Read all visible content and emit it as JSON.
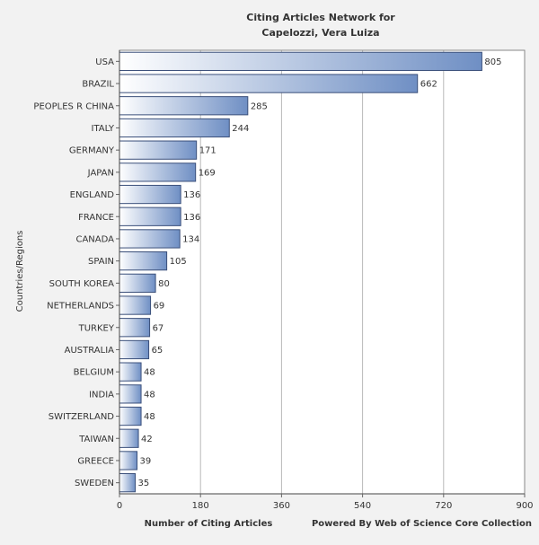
{
  "chart_data": {
    "type": "bar",
    "orientation": "horizontal",
    "title_lines": [
      "Citing Articles Network for",
      "Capelozzi, Vera Luiza"
    ],
    "ylabel": "Countries/Regions",
    "xlabel": "Number of Citing Articles",
    "footer": "Powered By Web of Science Core Collection",
    "xlim": [
      0,
      900
    ],
    "xticks": [
      0,
      180,
      360,
      540,
      720,
      900
    ],
    "categories": [
      "USA",
      "BRAZIL",
      "PEOPLES R CHINA",
      "ITALY",
      "GERMANY",
      "JAPAN",
      "ENGLAND",
      "FRANCE",
      "CANADA",
      "SPAIN",
      "SOUTH KOREA",
      "NETHERLANDS",
      "TURKEY",
      "AUSTRALIA",
      "BELGIUM",
      "INDIA",
      "SWITZERLAND",
      "TAIWAN",
      "GREECE",
      "SWEDEN"
    ],
    "values": [
      805,
      662,
      285,
      244,
      171,
      169,
      136,
      136,
      134,
      105,
      80,
      69,
      67,
      65,
      48,
      48,
      48,
      42,
      39,
      35
    ],
    "colors": {
      "bar_light": "#ffffff",
      "bar_dark": "#6f8fc4",
      "bar_stroke": "#3a4f7a",
      "grid": "#b8b8b8",
      "text": "#333333",
      "plot_bg": "#ffffff",
      "page_bg": "#f2f2f2"
    }
  }
}
